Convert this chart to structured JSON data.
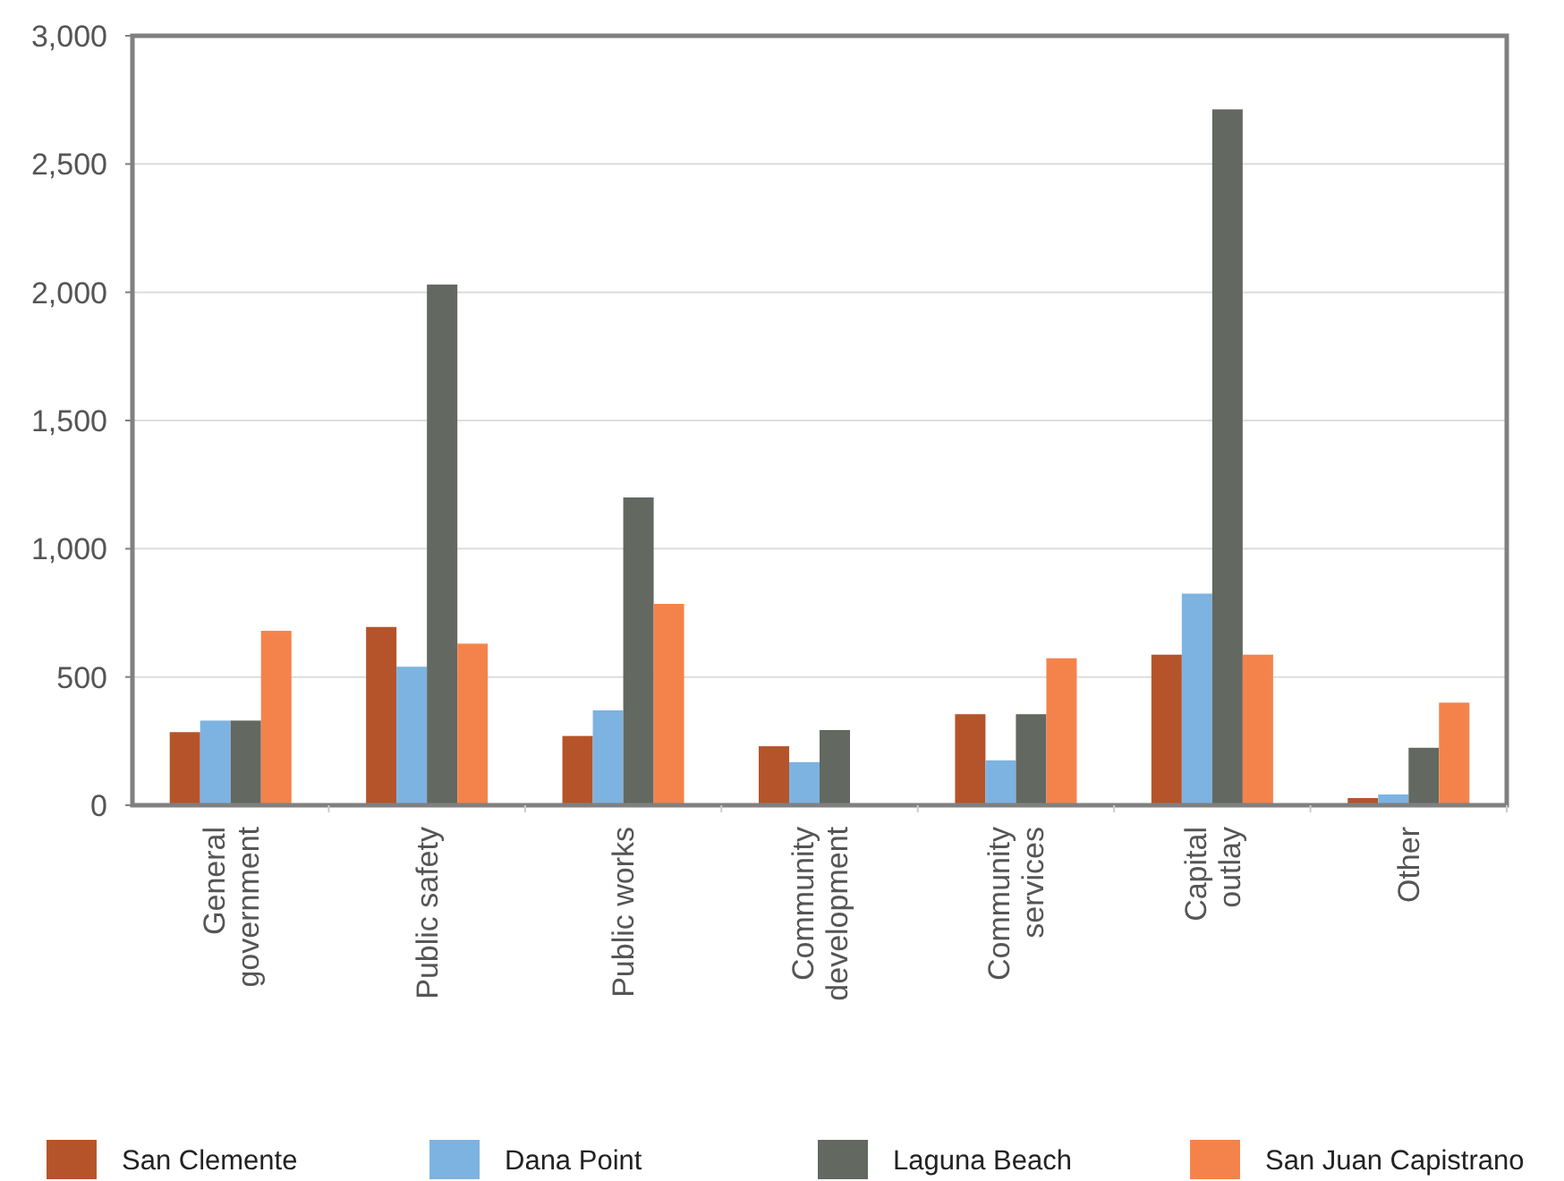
{
  "chart_data": {
    "type": "bar",
    "categories": [
      "General\ngovernment",
      "Public safety",
      "Public works",
      "Community\ndevelopment",
      "Community\nservices",
      "Capital\noutlay",
      "Other"
    ],
    "series": [
      {
        "name": "San Clemente",
        "color": "#b5542a",
        "values": [
          285,
          695,
          270,
          230,
          355,
          587,
          28
        ]
      },
      {
        "name": "Dana Point",
        "color": "#7db3e1",
        "values": [
          330,
          540,
          370,
          168,
          175,
          825,
          42
        ]
      },
      {
        "name": "Laguna Beach",
        "color": "#636860",
        "values": [
          330,
          2030,
          1200,
          293,
          355,
          2713,
          224
        ]
      },
      {
        "name": "San Juan Capistrano",
        "color": "#f4834b",
        "values": [
          680,
          630,
          785,
          null,
          573,
          587,
          400
        ]
      }
    ],
    "ylim": [
      0,
      3000
    ],
    "yticks": [
      0,
      {
        "value": 500,
        "label": "500"
      },
      {
        "value": 1000,
        "label": "1,000"
      },
      {
        "value": 1500,
        "label": "1,500"
      },
      {
        "value": 2000,
        "label": "2,000"
      },
      {
        "value": 2500,
        "label": "2,500"
      },
      {
        "value": 3000,
        "label": "3,000"
      }
    ],
    "grid": "y",
    "legend": "bottom"
  }
}
